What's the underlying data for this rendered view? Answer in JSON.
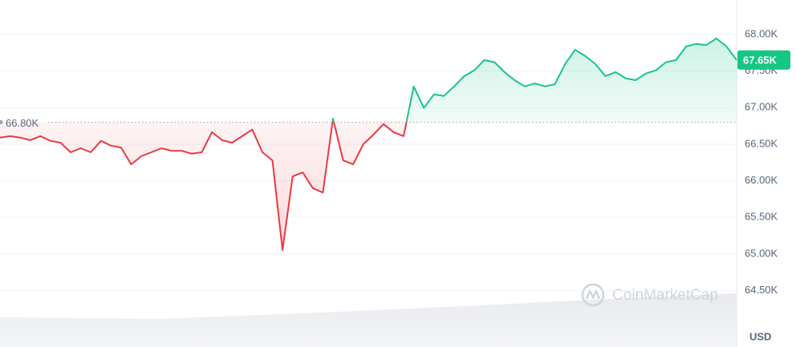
{
  "chart_data": {
    "type": "line",
    "values": [
      66590,
      66610,
      66590,
      66555,
      66610,
      66545,
      66520,
      66390,
      66445,
      66390,
      66545,
      66480,
      66455,
      66225,
      66335,
      66390,
      66445,
      66410,
      66410,
      66370,
      66390,
      66665,
      66555,
      66520,
      66610,
      66700,
      66390,
      66280,
      65055,
      66060,
      66115,
      65900,
      65840,
      66850,
      66280,
      66225,
      66500,
      66630,
      66775,
      66665,
      66610,
      67290,
      66995,
      67180,
      67160,
      67290,
      67430,
      67510,
      67650,
      67620,
      67485,
      67375,
      67290,
      67330,
      67290,
      67320,
      67595,
      67790,
      67705,
      67595,
      67430,
      67485,
      67400,
      67375,
      67465,
      67510,
      67620,
      67650,
      67835,
      67870,
      67855,
      67945,
      67835,
      67650
    ],
    "baseline": {
      "value": 66800,
      "label": "66.80K"
    },
    "current": {
      "value": 67650,
      "label": "67.65K"
    },
    "up_color": "#16c784",
    "down_color": "#ea3943",
    "ylim": [
      63730,
      68470
    ],
    "yticks": [
      {
        "value": 68000,
        "label": "68.00K"
      },
      {
        "value": 67500,
        "label": "67.50K"
      },
      {
        "value": 67000,
        "label": "67.00K"
      },
      {
        "value": 66500,
        "label": "66.50K"
      },
      {
        "value": 66000,
        "label": "66.00K"
      },
      {
        "value": 65500,
        "label": "65.50K"
      },
      {
        "value": 65000,
        "label": "65.00K"
      },
      {
        "value": 64500,
        "label": "64.50K"
      }
    ],
    "grid": true,
    "unit": "USD",
    "watermark": "CoinMarketCap"
  }
}
